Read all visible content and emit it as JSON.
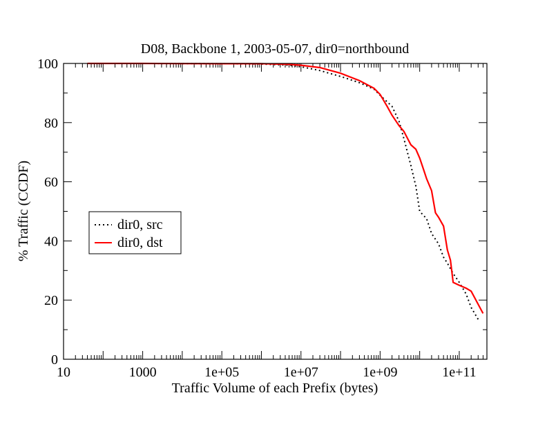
{
  "chart_data": {
    "type": "line",
    "title": "D08, Backbone 1, 2003-05-07, dir0=northbound",
    "xlabel": "Traffic Volume of each Prefix (bytes)",
    "ylabel": "% Traffic (CCDF)",
    "xscale": "log",
    "xlim": [
      10,
      500000000000
    ],
    "ylim": [
      0,
      100
    ],
    "x_ticks": [
      {
        "value": 10,
        "label": "10"
      },
      {
        "value": 1000,
        "label": "1000"
      },
      {
        "value": 100000,
        "label": "1e+05"
      },
      {
        "value": 10000000,
        "label": "1e+07"
      },
      {
        "value": 1000000000,
        "label": "1e+09"
      },
      {
        "value": 100000000000,
        "label": "1e+11"
      }
    ],
    "y_ticks": [
      {
        "value": 0,
        "label": "0"
      },
      {
        "value": 20,
        "label": "20"
      },
      {
        "value": 40,
        "label": "40"
      },
      {
        "value": 60,
        "label": "60"
      },
      {
        "value": 80,
        "label": "80"
      },
      {
        "value": 100,
        "label": "100"
      }
    ],
    "grid": false,
    "legend_position": "middle-left",
    "series": [
      {
        "name": "dir0, src",
        "color": "#000000",
        "style": "dotted",
        "x": [
          40,
          1000,
          100000,
          1000000,
          5000000,
          10000000,
          30000000,
          100000000,
          300000000,
          700000000,
          1000000000,
          2000000000,
          3000000000,
          4000000000,
          6000000000,
          8000000000,
          10000000000,
          15000000000,
          20000000000,
          30000000000,
          40000000000,
          50000000000,
          70000000000,
          100000000000,
          150000000000,
          200000000000,
          300000000000
        ],
        "y": [
          100,
          100,
          99.9,
          99.8,
          99.4,
          98.9,
          97.6,
          95.6,
          93.5,
          91.3,
          89.2,
          85.5,
          80.5,
          74.5,
          65.5,
          58.5,
          50.0,
          47.5,
          42.5,
          39.0,
          34.5,
          32.5,
          29.0,
          26.0,
          22.0,
          17.5,
          13.5
        ]
      },
      {
        "name": "dir0, dst",
        "color": "#ff0000",
        "style": "solid",
        "x": [
          40,
          1000,
          100000,
          1000000,
          5000000,
          10000000,
          30000000,
          100000000,
          300000000,
          700000000,
          1000000000,
          1500000000,
          2000000000,
          3000000000,
          4000000000,
          5000000000,
          6000000000,
          8000000000,
          10000000000,
          13000000000,
          15000000000,
          20000000000,
          25000000000,
          30000000000,
          40000000000,
          50000000000,
          60000000000,
          70000000000,
          100000000000,
          150000000000,
          200000000000,
          400000000000
        ],
        "y": [
          100,
          100,
          99.9,
          99.9,
          99.7,
          99.4,
          98.6,
          96.7,
          94.2,
          91.6,
          89.5,
          85.5,
          82.5,
          79.0,
          77.0,
          74.5,
          72.5,
          71.0,
          68.0,
          63.5,
          61.0,
          57.0,
          49.5,
          48.0,
          45.0,
          37.0,
          33.5,
          26.0,
          25.0,
          24.0,
          23.0,
          15.5
        ]
      }
    ]
  }
}
